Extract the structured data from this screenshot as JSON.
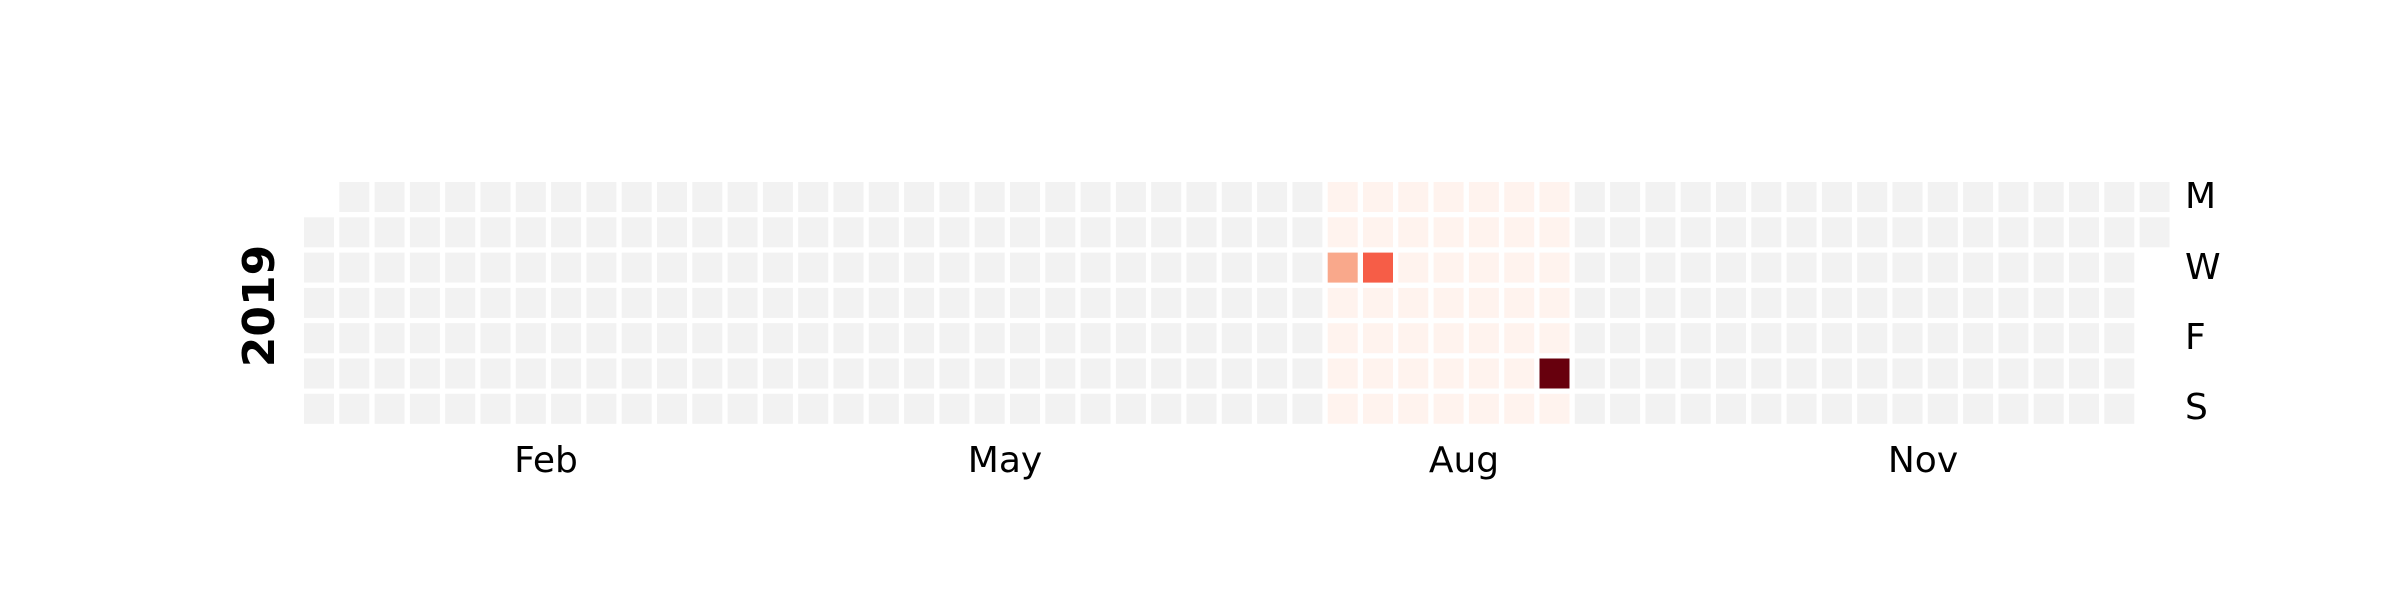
{
  "chart_data": {
    "type": "heatmap",
    "year_label": "2019",
    "year": 2019,
    "x_tick_labels": [
      "Feb",
      "May",
      "Aug",
      "Nov"
    ],
    "y_tick_labels": [
      "M",
      "W",
      "F",
      "S"
    ],
    "colors": {
      "empty": "#f2f2f2",
      "scale": [
        "#fff3ee",
        "#f9a88b",
        "#f65d47",
        "#67000d"
      ]
    },
    "cells": [
      {
        "date": "2019-07-24",
        "level": 1
      },
      {
        "date": "2019-07-31",
        "level": 2
      },
      {
        "date": "2019-09-07",
        "level": 3
      }
    ],
    "data_period": {
      "start": "2019-07-22",
      "end": "2019-09-08"
    }
  }
}
